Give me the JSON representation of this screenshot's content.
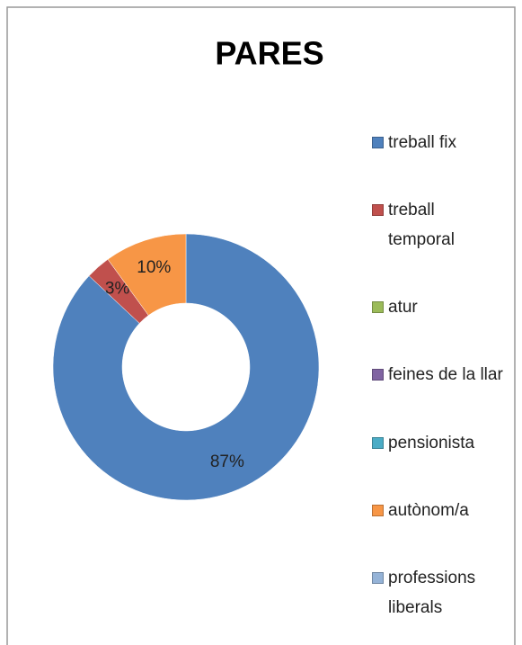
{
  "chart_data": {
    "type": "donut",
    "title": "PARES",
    "categories": [
      "treball fix",
      "treball temporal",
      "atur",
      "feines de la llar",
      "pensionista",
      "autònom/a",
      "professions liberals"
    ],
    "values": [
      87,
      3,
      0,
      0,
      0,
      10,
      0
    ],
    "value_labels": [
      "87%",
      "3%",
      null,
      null,
      null,
      "10%",
      null
    ],
    "colors": [
      "#4f81bd",
      "#c0504d",
      "#9bbb59",
      "#8064a2",
      "#4bacc6",
      "#f79646",
      "#95b3d7"
    ],
    "legend": "right"
  }
}
